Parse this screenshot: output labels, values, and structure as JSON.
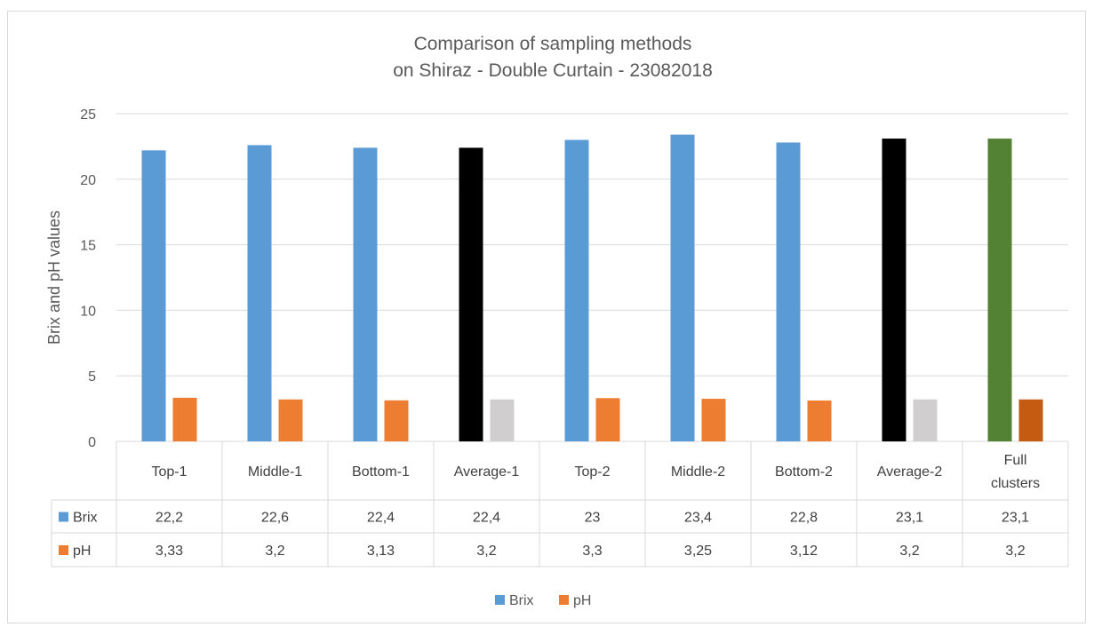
{
  "chart_data": {
    "type": "bar",
    "title_lines": [
      "Comparison of sampling methods",
      "on Shiraz - Double Curtain - 23082018"
    ],
    "ylabel": "Brix and pH values",
    "xlabel": "",
    "ylim": [
      0,
      25
    ],
    "yticks": [
      0,
      5,
      10,
      15,
      20,
      25
    ],
    "grid": true,
    "legend_position": "bottom",
    "categories": [
      [
        "Top-1"
      ],
      [
        "Middle-1"
      ],
      [
        "Bottom-1"
      ],
      [
        "Average-1"
      ],
      [
        "Top-2"
      ],
      [
        "Middle-2"
      ],
      [
        "Bottom-2"
      ],
      [
        "Average-2"
      ],
      [
        "Full",
        "clusters"
      ]
    ],
    "series": [
      {
        "name": "Brix",
        "color": "#5b9bd5",
        "values": [
          22.2,
          22.6,
          22.4,
          22.4,
          23,
          23.4,
          22.8,
          23.1,
          23.1
        ],
        "labels": [
          "22,2",
          "22,6",
          "22,4",
          "22,4",
          "23",
          "23,4",
          "22,8",
          "23,1",
          "23,1"
        ],
        "point_colors": [
          "#5b9bd5",
          "#5b9bd5",
          "#5b9bd5",
          "#000000",
          "#5b9bd5",
          "#5b9bd5",
          "#5b9bd5",
          "#000000",
          "#548235"
        ]
      },
      {
        "name": "pH",
        "color": "#ed7d31",
        "values": [
          3.33,
          3.2,
          3.13,
          3.2,
          3.3,
          3.25,
          3.12,
          3.2,
          3.2
        ],
        "labels": [
          "3,33",
          "3,2",
          "3,13",
          "3,2",
          "3,3",
          "3,25",
          "3,12",
          "3,2",
          "3,2"
        ],
        "point_colors": [
          "#ed7d31",
          "#ed7d31",
          "#ed7d31",
          "#d0cece",
          "#ed7d31",
          "#ed7d31",
          "#ed7d31",
          "#d0cece",
          "#c55a11"
        ]
      }
    ],
    "data_table": true
  },
  "colors": {
    "grid": "#d9d9d9",
    "text": "#595959"
  }
}
